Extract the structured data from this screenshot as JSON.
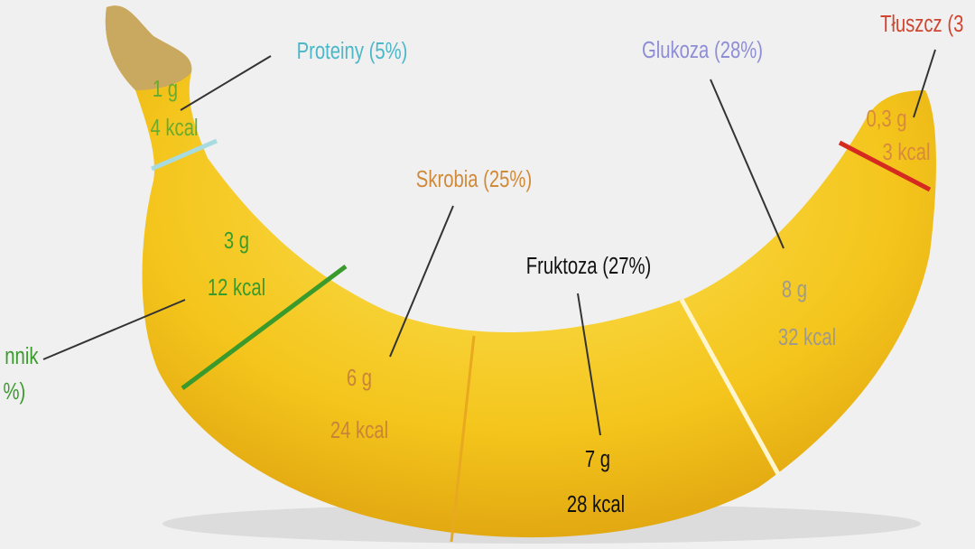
{
  "segments": [
    {
      "title": "Proteiny (5%)",
      "grams": "1 g",
      "kcal": "4 kcal"
    },
    {
      "title_lines": [
        "nnik",
        "%)"
      ],
      "grams": "3 g",
      "kcal": "12 kcal"
    },
    {
      "title": "Skrobia (25%)",
      "grams": "6 g",
      "kcal": "24 kcal"
    },
    {
      "title": "Fruktoza (27%)",
      "grams": "7 g",
      "kcal": "28 kcal"
    },
    {
      "title": "Glukoza (28%)",
      "grams": "8 g",
      "kcal": "32 kcal"
    },
    {
      "title": "Tłuszcz (3",
      "grams": "0,3 g",
      "kcal": "3 kcal"
    }
  ]
}
